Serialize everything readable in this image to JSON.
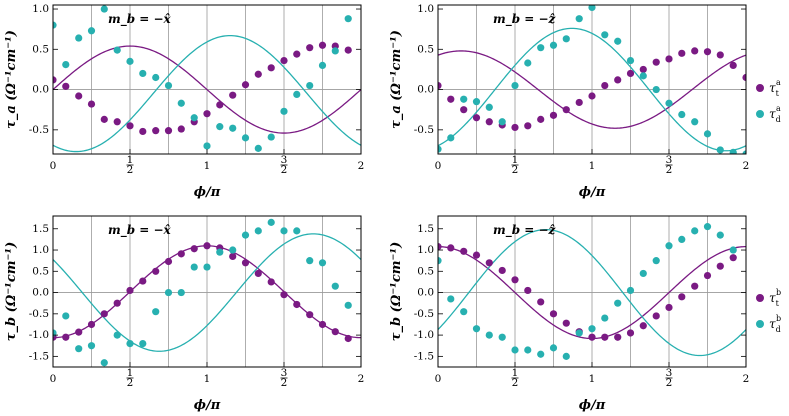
{
  "chart_data": [
    {
      "type": "scatter",
      "annotation": "m_b = −x̂",
      "ylabel": "τ_a (Ω⁻¹cm⁻¹)",
      "xlabel": "ϕ/π",
      "xlim": [
        0,
        2
      ],
      "ylim": [
        -0.8,
        1.05
      ],
      "yticks": [
        -0.5,
        0.0,
        0.5,
        1.0
      ],
      "xticks": [
        "0",
        "1/2",
        "1",
        "3/2",
        "2"
      ],
      "grid_x": true,
      "series": [
        {
          "name": "τ_t^a",
          "color": "#7a1a83",
          "x": [
            0,
            0.083,
            0.167,
            0.25,
            0.333,
            0.417,
            0.5,
            0.583,
            0.667,
            0.75,
            0.833,
            0.917,
            1,
            1.083,
            1.167,
            1.25,
            1.333,
            1.417,
            1.5,
            1.583,
            1.667,
            1.75,
            1.833,
            1.917
          ],
          "y": [
            0.12,
            0.04,
            -0.08,
            -0.18,
            -0.37,
            -0.4,
            -0.45,
            -0.52,
            -0.51,
            -0.51,
            -0.49,
            -0.4,
            -0.3,
            -0.19,
            -0.07,
            0.06,
            0.19,
            0.27,
            0.36,
            0.44,
            0.52,
            0.55,
            0.54,
            0.49
          ]
        },
        {
          "name": "τ_d^a",
          "color": "#27b0b0",
          "x": [
            0,
            0.083,
            0.167,
            0.25,
            0.333,
            0.417,
            0.5,
            0.583,
            0.667,
            0.75,
            0.833,
            0.917,
            1,
            1.083,
            1.167,
            1.25,
            1.333,
            1.417,
            1.5,
            1.583,
            1.667,
            1.75,
            1.833,
            1.917
          ],
          "y": [
            0.8,
            0.31,
            0.64,
            0.73,
            1.0,
            0.49,
            0.35,
            0.2,
            0.15,
            0.05,
            -0.17,
            -0.35,
            -0.7,
            -0.46,
            -0.48,
            -0.6,
            -0.73,
            -0.59,
            -0.27,
            -0.06,
            0.05,
            0.3,
            0.48,
            0.88
          ]
        }
      ],
      "fits": [
        {
          "series": "τ_t^a",
          "offset": 0.0,
          "amp": 0.54,
          "phase": -0.5
        },
        {
          "series": "τ_d^a",
          "offset": -0.05,
          "amp": 0.72,
          "phase": 0.15
        }
      ]
    },
    {
      "type": "scatter",
      "annotation": "m_b = −ẑ",
      "ylabel": "τ_a (Ω⁻¹cm⁻¹)",
      "xlabel": "ϕ/π",
      "xlim": [
        0,
        2
      ],
      "ylim": [
        -0.8,
        1.05
      ],
      "yticks": [
        -0.5,
        0.0,
        0.5,
        1.0
      ],
      "xticks": [
        "0",
        "1/2",
        "1",
        "3/2",
        "2"
      ],
      "grid_x": true,
      "series": [
        {
          "name": "τ_t^a",
          "color": "#7a1a83",
          "x": [
            0,
            0.083,
            0.167,
            0.25,
            0.333,
            0.417,
            0.5,
            0.583,
            0.667,
            0.75,
            0.833,
            0.917,
            1,
            1.083,
            1.167,
            1.25,
            1.333,
            1.417,
            1.5,
            1.583,
            1.667,
            1.75,
            1.833,
            1.917,
            2
          ],
          "y": [
            0.05,
            -0.12,
            -0.25,
            -0.35,
            -0.4,
            -0.44,
            -0.47,
            -0.45,
            -0.37,
            -0.32,
            -0.25,
            -0.16,
            -0.08,
            0.05,
            0.12,
            0.2,
            0.25,
            0.34,
            0.38,
            0.45,
            0.48,
            0.47,
            0.43,
            0.3,
            0.15
          ]
        },
        {
          "name": "τ_d^a",
          "color": "#27b0b0",
          "x": [
            0,
            0.083,
            0.167,
            0.25,
            0.333,
            0.417,
            0.5,
            0.583,
            0.667,
            0.75,
            0.833,
            0.917,
            1,
            1.083,
            1.167,
            1.25,
            1.333,
            1.417,
            1.5,
            1.583,
            1.667,
            1.75,
            1.833,
            1.917,
            2
          ],
          "y": [
            -0.74,
            -0.6,
            -0.12,
            -0.15,
            -0.22,
            -0.4,
            0.05,
            0.33,
            0.52,
            0.55,
            0.63,
            0.88,
            1.02,
            0.68,
            0.6,
            0.36,
            0.17,
            0.0,
            -0.17,
            -0.31,
            -0.4,
            -0.55,
            -0.75,
            -0.78,
            -0.8
          ]
        }
      ],
      "fits": [
        {
          "series": "τ_t^a",
          "offset": 0.0,
          "amp": 0.48,
          "phase": -0.85
        },
        {
          "series": "τ_d^a",
          "offset": 0.0,
          "amp": 0.76,
          "phase": -0.13
        }
      ]
    },
    {
      "type": "scatter",
      "annotation": "m_b = −x̂",
      "ylabel": "τ_b (Ω⁻¹cm⁻¹)",
      "xlabel": "ϕ/π",
      "xlim": [
        0,
        2
      ],
      "ylim": [
        -1.75,
        1.8
      ],
      "yticks": [
        -1.5,
        -1.0,
        -0.5,
        0.0,
        0.5,
        1.0,
        1.5
      ],
      "xticks": [
        "0",
        "1/2",
        "1",
        "3/2",
        "2"
      ],
      "grid_x": true,
      "series": [
        {
          "name": "τ_t^b",
          "color": "#7a1a83",
          "x": [
            0,
            0.083,
            0.167,
            0.25,
            0.333,
            0.417,
            0.5,
            0.583,
            0.667,
            0.75,
            0.833,
            0.917,
            1,
            1.083,
            1.167,
            1.25,
            1.333,
            1.417,
            1.5,
            1.583,
            1.667,
            1.75,
            1.833,
            1.917
          ],
          "y": [
            -1.05,
            -1.05,
            -0.93,
            -0.75,
            -0.5,
            -0.25,
            0.05,
            0.27,
            0.5,
            0.73,
            0.91,
            1.03,
            1.1,
            1.05,
            0.85,
            0.7,
            0.45,
            0.25,
            -0.05,
            -0.28,
            -0.52,
            -0.75,
            -0.92,
            -1.08
          ]
        },
        {
          "name": "τ_d^b",
          "color": "#27b0b0",
          "x": [
            0,
            0.083,
            0.167,
            0.25,
            0.333,
            0.417,
            0.5,
            0.583,
            0.667,
            0.75,
            0.833,
            0.917,
            1,
            1.083,
            1.167,
            1.25,
            1.333,
            1.417,
            1.5,
            1.583,
            1.667,
            1.75,
            1.833,
            1.917
          ],
          "y": [
            -0.95,
            -0.55,
            -1.32,
            -1.25,
            -1.65,
            -1.0,
            -1.2,
            -1.2,
            -0.45,
            0.0,
            0.0,
            0.6,
            0.6,
            0.95,
            1.0,
            1.35,
            1.45,
            1.65,
            1.45,
            1.45,
            0.75,
            0.7,
            0.15,
            -0.3
          ]
        }
      ],
      "fits": [
        {
          "series": "τ_t^b",
          "offset": 0.02,
          "amp": 1.08,
          "phase": 0.0
        },
        {
          "series": "τ_d^b",
          "offset": 0.0,
          "amp": 1.38,
          "phase": 0.69
        }
      ]
    },
    {
      "type": "scatter",
      "annotation": "m_b = −ẑ",
      "ylabel": "τ_b (Ω⁻¹cm⁻¹)",
      "xlabel": "ϕ/π",
      "xlim": [
        0,
        2
      ],
      "ylim": [
        -1.75,
        1.8
      ],
      "yticks": [
        -1.5,
        -1.0,
        -0.5,
        0.0,
        0.5,
        1.0,
        1.5
      ],
      "xticks": [
        "0",
        "1/2",
        "1",
        "3/2",
        "2"
      ],
      "grid_x": true,
      "series": [
        {
          "name": "τ_t^b",
          "color": "#7a1a83",
          "x": [
            0,
            0.083,
            0.167,
            0.25,
            0.333,
            0.417,
            0.5,
            0.583,
            0.667,
            0.75,
            0.833,
            0.917,
            1,
            1.083,
            1.167,
            1.25,
            1.333,
            1.417,
            1.5,
            1.583,
            1.667,
            1.75,
            1.833,
            1.917
          ],
          "y": [
            1.08,
            1.05,
            0.97,
            0.88,
            0.7,
            0.52,
            0.3,
            0.05,
            -0.22,
            -0.5,
            -0.72,
            -0.92,
            -1.05,
            -1.05,
            -1.05,
            -0.95,
            -0.78,
            -0.55,
            -0.35,
            -0.1,
            0.15,
            0.4,
            0.62,
            0.82
          ]
        },
        {
          "name": "τ_d^b",
          "color": "#27b0b0",
          "x": [
            0,
            0.083,
            0.167,
            0.25,
            0.333,
            0.417,
            0.5,
            0.583,
            0.667,
            0.75,
            0.833,
            0.917,
            1,
            1.083,
            1.167,
            1.25,
            1.333,
            1.417,
            1.5,
            1.583,
            1.667,
            1.75,
            1.833,
            1.917
          ],
          "y": [
            0.75,
            -0.15,
            -0.45,
            -0.85,
            -1.0,
            -1.05,
            -1.35,
            -1.35,
            -1.45,
            -1.3,
            -1.5,
            -0.95,
            -0.85,
            -0.6,
            -0.25,
            0.05,
            0.45,
            0.75,
            1.1,
            1.25,
            1.45,
            1.55,
            1.35,
            1.0
          ]
        }
      ],
      "fits": [
        {
          "series": "τ_t^b",
          "offset": 0.0,
          "amp": 1.08,
          "phase": 1.0
        },
        {
          "series": "τ_d^b",
          "offset": 0.0,
          "amp": 1.48,
          "phase": -0.3
        }
      ]
    }
  ],
  "legends": [
    {
      "items": [
        {
          "label": "τ",
          "sub": "t",
          "sup": "a",
          "color": "#7a1a83"
        },
        {
          "label": "τ",
          "sub": "d",
          "sup": "a",
          "color": "#27b0b0"
        }
      ]
    },
    {
      "items": [
        {
          "label": "τ",
          "sub": "t",
          "sup": "b",
          "color": "#7a1a83"
        },
        {
          "label": "τ",
          "sub": "d",
          "sup": "b",
          "color": "#27b0b0"
        }
      ]
    }
  ]
}
